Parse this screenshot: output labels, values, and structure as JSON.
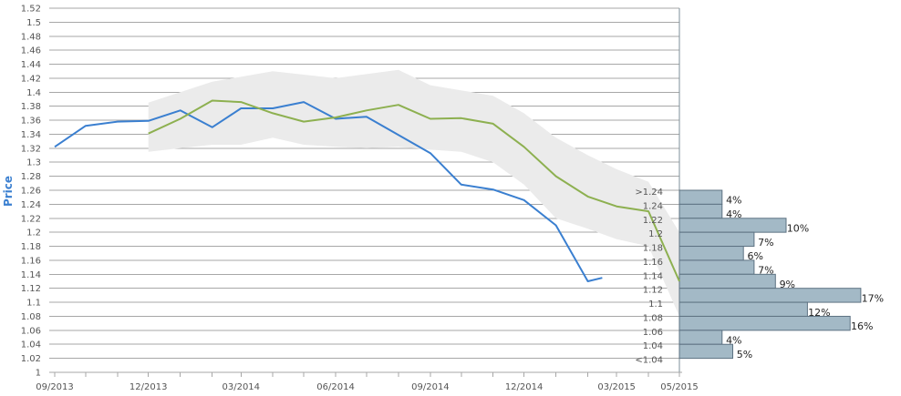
{
  "chart_data": {
    "type": "line",
    "ylabel": "Price",
    "ylim": [
      1,
      1.52
    ],
    "y_ticks": [
      "1",
      "1.02",
      "1.04",
      "1.06",
      "1.08",
      "1.1",
      "1.12",
      "1.14",
      "1.16",
      "1.18",
      "1.2",
      "1.22",
      "1.24",
      "1.26",
      "1.28",
      "1.3",
      "1.32",
      "1.34",
      "1.36",
      "1.38",
      "1.4",
      "1.42",
      "1.44",
      "1.46",
      "1.48",
      "1.5",
      "1.52"
    ],
    "x_ticks": [
      "09/2013",
      "12/2013",
      "03/2014",
      "06/2014",
      "09/2014",
      "12/2014",
      "03/2015",
      "05/2015"
    ],
    "grid": true,
    "colors": {
      "actual": "#3a7fd0",
      "forecast": "#8db050",
      "band": "#ebebeb",
      "bar_fill": "#a3b9c6",
      "bar_stroke": "#5d7282"
    },
    "series": [
      {
        "key": "actual",
        "values": [
          [
            "2013-09",
            1.322
          ],
          [
            "2013-10",
            1.352
          ],
          [
            "2013-11",
            1.358
          ],
          [
            "2013-12",
            1.359
          ],
          [
            "2014-01",
            1.374
          ],
          [
            "2014-02",
            1.35
          ],
          [
            "2014-03",
            1.377
          ],
          [
            "2014-04",
            1.377
          ],
          [
            "2014-05",
            1.386
          ],
          [
            "2014-06",
            1.362
          ],
          [
            "2014-07",
            1.365
          ],
          [
            "2014-08",
            1.339
          ],
          [
            "2014-09",
            1.313
          ],
          [
            "2014-10",
            1.268
          ],
          [
            "2014-11",
            1.261
          ],
          [
            "2014-12",
            1.246
          ],
          [
            "2015-01",
            1.21
          ],
          [
            "2015-02",
            1.13
          ],
          [
            "2015-02-15",
            1.135
          ]
        ]
      },
      {
        "key": "forecast",
        "values": [
          [
            "2013-12",
            1.341
          ],
          [
            "2014-01",
            1.362
          ],
          [
            "2014-02",
            1.388
          ],
          [
            "2014-03",
            1.386
          ],
          [
            "2014-04",
            1.37
          ],
          [
            "2014-05",
            1.358
          ],
          [
            "2014-06",
            1.364
          ],
          [
            "2014-07",
            1.374
          ],
          [
            "2014-08",
            1.382
          ],
          [
            "2014-09",
            1.362
          ],
          [
            "2014-10",
            1.363
          ],
          [
            "2014-11",
            1.355
          ],
          [
            "2014-12",
            1.322
          ],
          [
            "2015-01",
            1.28
          ],
          [
            "2015-02",
            1.251
          ],
          [
            "2015-03",
            1.237
          ],
          [
            "2015-04",
            1.23
          ],
          [
            "2015-05",
            1.13
          ]
        ]
      }
    ],
    "band": {
      "upper": [
        [
          "2013-12",
          1.385
        ],
        [
          "2014-02",
          1.415
        ],
        [
          "2014-04",
          1.43
        ],
        [
          "2014-06",
          1.42
        ],
        [
          "2014-08",
          1.432
        ],
        [
          "2014-09",
          1.41
        ],
        [
          "2014-11",
          1.395
        ],
        [
          "2014-12",
          1.37
        ],
        [
          "2015-01",
          1.335
        ],
        [
          "2015-02",
          1.31
        ],
        [
          "2015-03",
          1.29
        ],
        [
          "2015-04",
          1.272
        ],
        [
          "2015-05",
          1.2
        ]
      ],
      "lower": [
        [
          "2015-05",
          1.08
        ],
        [
          "2015-04",
          1.18
        ],
        [
          "2015-03",
          1.19
        ],
        [
          "2015-02",
          1.205
        ],
        [
          "2015-01",
          1.22
        ],
        [
          "2014-12",
          1.268
        ],
        [
          "2014-11",
          1.3
        ],
        [
          "2014-10",
          1.315
        ],
        [
          "2014-09",
          1.318
        ],
        [
          "2014-08",
          1.322
        ],
        [
          "2014-07",
          1.32
        ],
        [
          "2014-06",
          1.322
        ],
        [
          "2014-05",
          1.325
        ],
        [
          "2014-04",
          1.335
        ],
        [
          "2014-03",
          1.325
        ],
        [
          "2014-02",
          1.325
        ],
        [
          "2014-01",
          1.32
        ],
        [
          "2013-12",
          1.315
        ]
      ]
    },
    "distribution": [
      {
        "label": ">1.24",
        "pct": 4,
        "text": "4%"
      },
      {
        "label": "1.24",
        "pct": 4,
        "text": "4%"
      },
      {
        "label": "1.22",
        "pct": 10,
        "text": "10%"
      },
      {
        "label": "1.2",
        "pct": 7,
        "text": "7%"
      },
      {
        "label": "1.18",
        "pct": 6,
        "text": "6%"
      },
      {
        "label": "1.16",
        "pct": 7,
        "text": "7%"
      },
      {
        "label": "1.14",
        "pct": 9,
        "text": "9%"
      },
      {
        "label": "1.12",
        "pct": 17,
        "text": "17%"
      },
      {
        "label": "1.1",
        "pct": 12,
        "text": "12%"
      },
      {
        "label": "1.08",
        "pct": 16,
        "text": "16%"
      },
      {
        "label": "1.06",
        "pct": 4,
        "text": "4%"
      },
      {
        "label": "1.04",
        "pct": 5,
        "text": "5%"
      },
      {
        "label": "<1.04",
        "pct": null,
        "text": ""
      }
    ]
  }
}
